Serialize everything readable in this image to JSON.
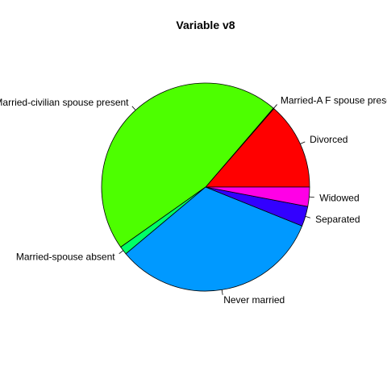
{
  "chart_data": {
    "type": "pie",
    "title": "Variable v8",
    "direction": "counterclockwise",
    "start_angle_deg": 0,
    "slices": [
      {
        "label": "Divorced",
        "value": 13.6,
        "color": "#FF0000"
      },
      {
        "label": "Married-A F spouse present",
        "value": 0.1,
        "color": "#FF9900"
      },
      {
        "label": "Married-civilian spouse present",
        "value": 46.1,
        "color": "#4DFF00"
      },
      {
        "label": "Married-spouse absent",
        "value": 1.3,
        "color": "#00FF66"
      },
      {
        "label": "Never married",
        "value": 32.8,
        "color": "#0099FF"
      },
      {
        "label": "Separated",
        "value": 3.1,
        "color": "#3300FF"
      },
      {
        "label": "Widowed",
        "value": 3.0,
        "color": "#FF00E6"
      }
    ]
  }
}
